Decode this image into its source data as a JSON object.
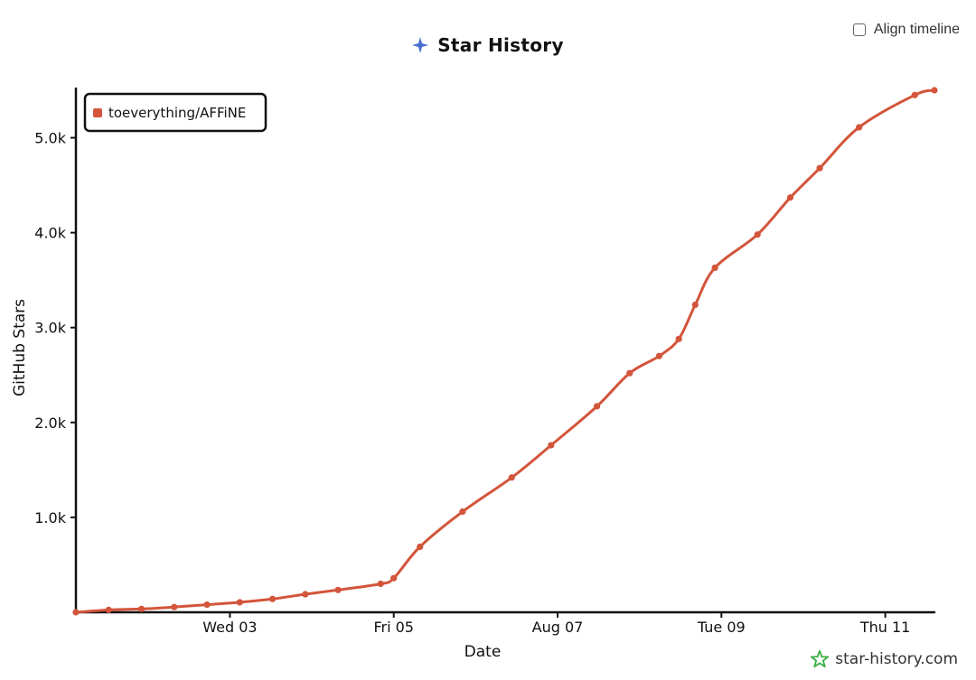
{
  "title": "Star History",
  "align_timeline_label": "Align timeline",
  "watermark": "star-history.com",
  "colors": {
    "series": "#d3553b",
    "title_icon": "#4a6fd1",
    "watermark_icon": "#3cb043",
    "axis": "#111111"
  },
  "icons": {
    "title": "sparkle-icon",
    "watermark": "star-outline-icon",
    "checkbox": "checkbox-icon"
  },
  "chart_data": {
    "type": "line",
    "title": "Star History",
    "xlabel": "Date",
    "ylabel": "GitHub Stars",
    "xlim": [
      0,
      26.2
    ],
    "ylim": [
      0,
      5500
    ],
    "x_ticks": [
      {
        "x": 4.7,
        "label": "Wed 03"
      },
      {
        "x": 9.7,
        "label": "Fri 05"
      },
      {
        "x": 14.7,
        "label": "Aug 07"
      },
      {
        "x": 19.7,
        "label": "Tue 09"
      },
      {
        "x": 24.7,
        "label": "Thu 11"
      }
    ],
    "y_ticks": [
      {
        "y": 1000,
        "label": "1.0k"
      },
      {
        "y": 2000,
        "label": "2.0k"
      },
      {
        "y": 3000,
        "label": "3.0k"
      },
      {
        "y": 4000,
        "label": "4.0k"
      },
      {
        "y": 5000,
        "label": "5.0k"
      }
    ],
    "legend_position": "top-left",
    "series": [
      {
        "name": "toeverything/AFFiNE",
        "points": [
          [
            0,
            0
          ],
          [
            1,
            25
          ],
          [
            2,
            35
          ],
          [
            3,
            55
          ],
          [
            4,
            80
          ],
          [
            5,
            105
          ],
          [
            6,
            140
          ],
          [
            7,
            190
          ],
          [
            8,
            235
          ],
          [
            9.3,
            300
          ],
          [
            9.7,
            360
          ],
          [
            10.5,
            690
          ],
          [
            11.8,
            1060
          ],
          [
            13.3,
            1420
          ],
          [
            14.5,
            1760
          ],
          [
            15.9,
            2170
          ],
          [
            16.9,
            2520
          ],
          [
            17.8,
            2700
          ],
          [
            18.4,
            2880
          ],
          [
            18.9,
            3240
          ],
          [
            19.5,
            3630
          ],
          [
            20.8,
            3980
          ],
          [
            21.8,
            4370
          ],
          [
            22.7,
            4680
          ],
          [
            23.9,
            5110
          ],
          [
            25.6,
            5450
          ],
          [
            26.2,
            5500
          ]
        ]
      }
    ]
  }
}
